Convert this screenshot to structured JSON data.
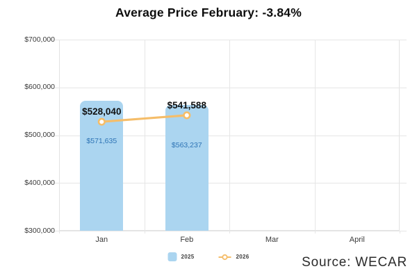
{
  "source": "Source: WECAR",
  "legend": {
    "items": [
      {
        "label": "2025",
        "swatch": "bar"
      },
      {
        "label": "2026",
        "swatch": "line-marker"
      }
    ]
  },
  "chart_data": {
    "type": "bar",
    "title": "Average Price February: -3.84%",
    "categories": [
      "Jan",
      "Feb",
      "Mar",
      "April"
    ],
    "series": [
      {
        "name": "2025",
        "render": "bar",
        "values": [
          571635,
          563237,
          null,
          null
        ],
        "labels": [
          "$571,635",
          "$563,237"
        ]
      },
      {
        "name": "2026",
        "render": "line",
        "values": [
          528040,
          541588,
          null,
          null
        ],
        "labels": [
          "$528,040",
          "$541,588"
        ]
      }
    ],
    "ylabel": "",
    "xlabel": "",
    "ylim": [
      300000,
      700000
    ],
    "ytick_step": 100000,
    "ytick_labels": [
      "$700,000",
      "$600,000",
      "$500,000",
      "$400,000",
      "$300,000"
    ],
    "grid": true,
    "legend_position": "bottom-center",
    "colors": {
      "bar": "#ABD5F0",
      "bar_label": "#2E74B5",
      "line": "#F5BD69",
      "marker_fill": "#FFFFFF",
      "grid": "#E6E6E6",
      "plot_border": "#E2E2E2",
      "axis_text": "#3A3A3A",
      "title_text": "#0D0D0D",
      "value_label": "#111111"
    }
  }
}
